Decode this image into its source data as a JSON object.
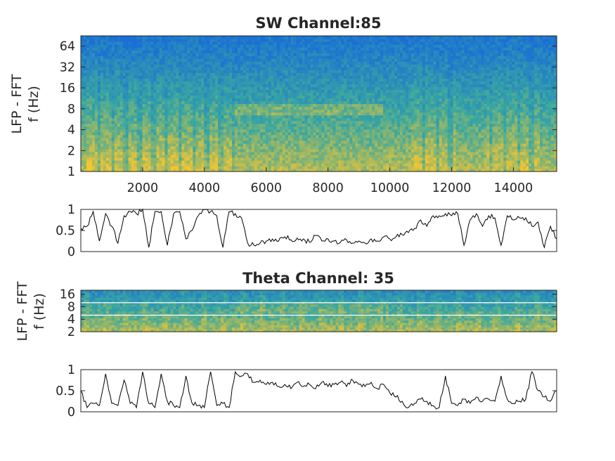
{
  "chart_data": [
    {
      "type": "heatmap",
      "title": "SW Channel:85",
      "ylabel_line1": "LFP - FFT",
      "ylabel_line2": "f (Hz)",
      "yscale": "log",
      "ylim": [
        1,
        90
      ],
      "xlim": [
        0,
        15400
      ],
      "x_ticks": [
        2000,
        4000,
        6000,
        8000,
        10000,
        12000,
        14000
      ],
      "x_tick_labels": [
        "2000",
        "4000",
        "6000",
        "8000",
        "10000",
        "12000",
        "14000"
      ],
      "y_ticks": [
        1,
        2,
        4,
        8,
        16,
        32,
        64
      ],
      "y_tick_labels": [
        "1",
        "2",
        "4",
        "8",
        "16",
        "32",
        "64"
      ],
      "colormap": "parula",
      "colors": {
        "low": "#1a6fd6",
        "mid": "#3aa8a0",
        "high": "#f2c531"
      },
      "high_power_segments": [
        [
          200,
          5000
        ],
        [
          10700,
          12100
        ],
        [
          13100,
          14900
        ]
      ],
      "theta_band_hz": [
        6,
        9
      ],
      "theta_band_segment": [
        5000,
        9800
      ]
    },
    {
      "type": "line",
      "ylim": [
        0,
        1
      ],
      "xlim": [
        0,
        15400
      ],
      "y_ticks": [
        0,
        0.5,
        1
      ],
      "y_tick_labels": [
        "0",
        "0.5",
        "1"
      ],
      "color": "#000000",
      "x": [
        0,
        200,
        400,
        600,
        800,
        1000,
        1200,
        1400,
        1600,
        1800,
        2000,
        2200,
        2400,
        2600,
        2800,
        3000,
        3200,
        3400,
        3600,
        3800,
        4000,
        4200,
        4400,
        4600,
        4800,
        5000,
        5200,
        5400,
        5600,
        5800,
        6000,
        6200,
        6400,
        6600,
        6800,
        7000,
        7200,
        7400,
        7600,
        7800,
        8000,
        8200,
        8400,
        8600,
        8800,
        9000,
        9200,
        9400,
        9600,
        9800,
        10000,
        10200,
        10400,
        10600,
        10800,
        11000,
        11200,
        11400,
        11600,
        11800,
        12000,
        12200,
        12400,
        12600,
        12800,
        13000,
        13200,
        13400,
        13600,
        13800,
        14000,
        14200,
        14400,
        14600,
        14800,
        15000,
        15200,
        15400
      ],
      "y": [
        0.55,
        0.6,
        0.95,
        0.25,
        0.9,
        0.6,
        0.2,
        0.85,
        0.95,
        0.9,
        1.0,
        0.1,
        0.95,
        0.95,
        0.15,
        0.9,
        0.95,
        0.3,
        0.5,
        0.85,
        1.0,
        0.95,
        0.85,
        0.1,
        0.95,
        0.9,
        0.8,
        0.2,
        0.15,
        0.2,
        0.25,
        0.3,
        0.25,
        0.35,
        0.28,
        0.32,
        0.3,
        0.22,
        0.38,
        0.25,
        0.3,
        0.25,
        0.22,
        0.28,
        0.2,
        0.25,
        0.2,
        0.3,
        0.25,
        0.35,
        0.3,
        0.35,
        0.4,
        0.45,
        0.55,
        0.75,
        0.6,
        0.85,
        0.85,
        0.9,
        0.85,
        0.9,
        0.15,
        0.75,
        0.9,
        0.6,
        0.85,
        0.8,
        0.15,
        0.85,
        0.75,
        0.8,
        0.8,
        0.6,
        0.7,
        0.1,
        0.6,
        0.3
      ]
    },
    {
      "type": "heatmap",
      "title": "Theta Channel: 35",
      "ylabel_line1": "LFP - FFT",
      "ylabel_line2": "f (Hz)",
      "yscale": "log",
      "ylim": [
        2,
        20
      ],
      "xlim": [
        0,
        15400
      ],
      "y_ticks": [
        2,
        4,
        8,
        16
      ],
      "y_tick_labels": [
        "2",
        "4",
        "8",
        "16"
      ],
      "colormap": "parula",
      "colors": {
        "low": "#1a6fd6",
        "mid": "#3aa8a0",
        "high": "#f2c531"
      },
      "band_lines_hz": [
        5,
        10
      ],
      "band_line_color": "#ffffff"
    },
    {
      "type": "line",
      "ylim": [
        0,
        1
      ],
      "xlim": [
        0,
        15400
      ],
      "y_ticks": [
        0,
        0.5,
        1
      ],
      "y_tick_labels": [
        "0",
        "0.5",
        "1"
      ],
      "color": "#000000",
      "x": [
        0,
        200,
        400,
        600,
        800,
        1000,
        1200,
        1400,
        1600,
        1800,
        2000,
        2200,
        2400,
        2600,
        2800,
        3000,
        3200,
        3400,
        3600,
        3800,
        4000,
        4200,
        4400,
        4600,
        4800,
        5000,
        5200,
        5400,
        5600,
        5800,
        6000,
        6200,
        6400,
        6600,
        6800,
        7000,
        7200,
        7400,
        7600,
        7800,
        8000,
        8200,
        8400,
        8600,
        8800,
        9000,
        9200,
        9400,
        9600,
        9800,
        10000,
        10200,
        10400,
        10600,
        10800,
        11000,
        11200,
        11400,
        11600,
        11800,
        12000,
        12200,
        12400,
        12600,
        12800,
        13000,
        13200,
        13400,
        13600,
        13800,
        14000,
        14200,
        14400,
        14600,
        14800,
        15000,
        15200,
        15400
      ],
      "y": [
        0.5,
        0.1,
        0.2,
        0.15,
        0.9,
        0.2,
        0.15,
        0.75,
        0.2,
        0.1,
        0.95,
        0.2,
        0.1,
        0.9,
        0.25,
        0.15,
        0.1,
        0.85,
        0.2,
        0.15,
        0.1,
        0.95,
        0.15,
        0.2,
        0.1,
        0.95,
        0.85,
        0.9,
        0.7,
        0.75,
        0.65,
        0.7,
        0.6,
        0.65,
        0.55,
        0.7,
        0.6,
        0.65,
        0.55,
        0.7,
        0.6,
        0.65,
        0.7,
        0.6,
        0.75,
        0.65,
        0.6,
        0.7,
        0.55,
        0.65,
        0.45,
        0.35,
        0.25,
        0.1,
        0.2,
        0.3,
        0.25,
        0.15,
        0.1,
        0.85,
        0.2,
        0.15,
        0.3,
        0.2,
        0.35,
        0.25,
        0.3,
        0.25,
        0.85,
        0.3,
        0.2,
        0.25,
        0.3,
        0.95,
        0.5,
        0.35,
        0.25,
        0.5
      ]
    }
  ]
}
